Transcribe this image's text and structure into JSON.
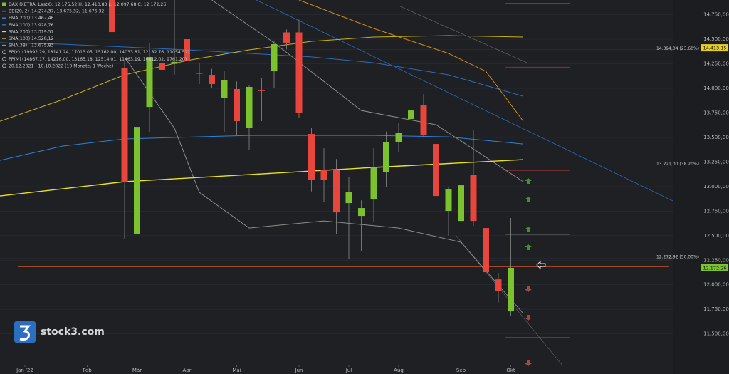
{
  "chart_data": {
    "type": "candlestick",
    "instrument": "DAX (XETRA, Last)",
    "ohlc_text": "O: 12.175,52  H: 12.410,83  L: 12.097,68  C: 12.172,26",
    "range_text": "20.12.2021 - 10.10.2022  (10 Monate, 1 Woche)",
    "watermark": "stock3.com",
    "up_color": "#7cc22e",
    "down_color": "#e8453c",
    "grid": true,
    "xlim": [
      0,
      54
    ],
    "xticks": [
      {
        "value": 2,
        "label": "Jan '22"
      },
      {
        "value": 7,
        "label": "Feb"
      },
      {
        "value": 11,
        "label": "Mär"
      },
      {
        "value": 15,
        "label": "Apr"
      },
      {
        "value": 19,
        "label": "Mai"
      },
      {
        "value": 24,
        "label": "Jun"
      },
      {
        "value": 28,
        "label": "Jul"
      },
      {
        "value": 32,
        "label": "Aug"
      },
      {
        "value": 37,
        "label": "Sep"
      },
      {
        "value": 41,
        "label": "Okt"
      }
    ],
    "ylim": [
      11200,
      14900
    ],
    "yticks": [
      {
        "value": 11500,
        "label": "11.500,00"
      },
      {
        "value": 11750,
        "label": "11.750,00"
      },
      {
        "value": 12000,
        "label": "12.000,00"
      },
      {
        "value": 12250,
        "label": "12.250,00"
      },
      {
        "value": 12500,
        "label": "12.500,00"
      },
      {
        "value": 12750,
        "label": "12.750,00"
      },
      {
        "value": 13000,
        "label": "13.000,00"
      },
      {
        "value": 13250,
        "label": "13.250,00"
      },
      {
        "value": 13500,
        "label": "13.500,00"
      },
      {
        "value": 13750,
        "label": "13.750,00"
      },
      {
        "value": 14000,
        "label": "14.000,00"
      },
      {
        "value": 14250,
        "label": "14.250,00"
      },
      {
        "value": 14500,
        "label": "14.500,00"
      },
      {
        "value": 14750,
        "label": "14.750,00"
      }
    ],
    "x": [
      9,
      10,
      11,
      12,
      13,
      14,
      15,
      16,
      17,
      18,
      19,
      20,
      21,
      22,
      23,
      24,
      25,
      26,
      27,
      28,
      29,
      30,
      31,
      32,
      33,
      34,
      35,
      36,
      37,
      38,
      39,
      40,
      41
    ],
    "open": [
      14950,
      14210,
      12520,
      13811,
      14261,
      14250,
      14501,
      14150,
      14138,
      13906,
      13993,
      13594,
      13980,
      14174,
      14570,
      14570,
      13536,
      13173,
      13173,
      12832,
      12701,
      12868,
      13144,
      13449,
      13688,
      13826,
      13434,
      12752,
      12650,
      13122,
      12578,
      12055,
      11729
    ],
    "high": [
      15000,
      14283,
      13650,
      14465,
      14392,
      14900,
      14537,
      14261,
      14200,
      14174,
      14070,
      14030,
      14102,
      14480,
      14600,
      14700,
      13600,
      13390,
      13280,
      13100,
      12860,
      13390,
      13560,
      13650,
      13790,
      13940,
      13470,
      13000,
      13060,
      13580,
      12850,
      12120,
      12680
    ],
    "low": [
      14500,
      12469,
      12450,
      13557,
      14102,
      14140,
      14247,
      14044,
      14000,
      13557,
      13520,
      13370,
      13666,
      14000,
      14400,
      13700,
      12950,
      12840,
      12520,
      12260,
      12340,
      12640,
      13000,
      13350,
      13580,
      13500,
      12850,
      12500,
      12550,
      12600,
      12100,
      11820,
      11680
    ],
    "close": [
      14573,
      13050,
      13608,
      14319,
      14189,
      14270,
      14283,
      14160,
      14044,
      14087,
      13666,
      14015,
      13975,
      14450,
      14465,
      13753,
      13071,
      13071,
      12737,
      12941,
      12781,
      13195,
      13449,
      13550,
      13775,
      13521,
      12904,
      12977,
      13013,
      12650,
      12128,
      11939,
      12172.26
    ],
    "series": [
      {
        "name": "BB(20, 2)",
        "value_text": "14.274,37, 13.675,32, 11.676,32",
        "color": "#8c8c8c",
        "lines": [
          {
            "x": [
              17,
              22,
              29,
              35,
              42
            ],
            "values": [
              14900,
              14465,
              13775,
              13630,
              13050
            ]
          },
          {
            "x": [
              10,
              14,
              16,
              20,
              26,
              32,
              37,
              42
            ],
            "values": [
              14319,
              13594,
              12941,
              12578,
              12650,
              12578,
              12433,
              11707
            ]
          }
        ]
      },
      {
        "name": "EMA(200)",
        "value_text": "13.467,46",
        "color": "#2f82d8",
        "lines": [
          {
            "x": [
              0,
              5,
              10,
              20,
              30,
              36,
              42
            ],
            "values": [
              13267,
              13412,
              13485,
              13521,
              13521,
              13506,
              13434
            ]
          }
        ]
      },
      {
        "name": "EMA(100)",
        "value_text": "13.928,76",
        "color": "#2a6cb8",
        "lines": [
          {
            "x": [
              0,
              5,
              15,
              20,
              25,
              30,
              36,
              42
            ],
            "values": [
              14465,
              14450,
              14392,
              14356,
              14320,
              14261,
              14138,
              13920
            ]
          }
        ]
      },
      {
        "name": "SMA(200)",
        "value_text": "13.319,57",
        "color": "#e8e020",
        "lines": [
          {
            "x": [
              0,
              10,
              20,
              30,
              42
            ],
            "values": [
              12904,
              13050,
              13122,
              13195,
              13274
            ]
          }
        ]
      },
      {
        "name": "SMA(100)",
        "value_text": "14.528,12",
        "color": "#c9b018",
        "lines": [
          {
            "x": [
              0,
              5,
              10,
              15,
              20,
              25,
              30,
              36,
              42
            ],
            "values": [
              13666,
              13884,
              14138,
              14283,
              14392,
              14479,
              14523,
              14537,
              14523
            ]
          }
        ]
      },
      {
        "name": "SMA(38)",
        "value_text": "13.675,83",
        "color": "#d48a10",
        "lines": [
          {
            "x": [
              24,
              30,
              36,
              39,
              42
            ],
            "values": [
              14900,
              14610,
              14356,
              14174,
              13666
            ]
          }
        ]
      }
    ],
    "pivots": [
      {
        "name": "PP(Y)",
        "label": "(19992.29, 18141.24, 17013.05, 15162.00, 14033.81, 12182.76, 11054.57)",
        "levels": [
          19992.29,
          18141.24,
          17013.05,
          15162.0,
          14033.81,
          12182.76,
          11054.57
        ]
      },
      {
        "name": "PP(M)",
        "label": "(14867.17, 14216.00, 13165.18, 12514.01, 11463.19, 10812.02, 9761.20)",
        "levels": [
          14867.17,
          14216.0,
          13165.18,
          12514.01,
          11463.19,
          10812.02,
          9761.2
        ]
      }
    ],
    "fib_levels": [
      {
        "value": 14394.04,
        "label": "14.394,04 (23.60%)"
      },
      {
        "value": 13221.0,
        "label": "13.221,00 (38.20%)"
      },
      {
        "value": 12272.92,
        "label": "12.272,92 (50.00%)"
      }
    ],
    "price_tags": [
      {
        "value": 14413.15,
        "label": "14.413,15",
        "color": "#e8d020"
      },
      {
        "value": 12172.26,
        "label": "12.172,26",
        "color": "#7cc22e"
      }
    ]
  }
}
